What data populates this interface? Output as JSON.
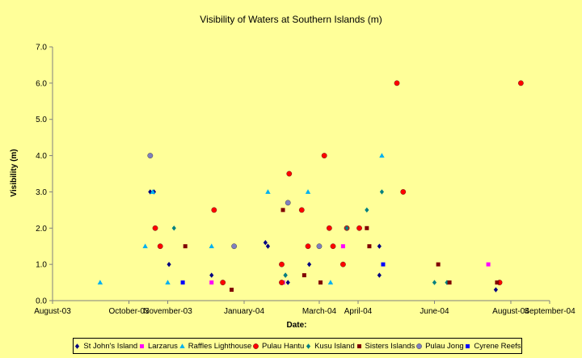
{
  "chart_data": {
    "type": "scatter",
    "title": "Visibility of Waters at Southern Islands (m)",
    "xlabel": "Date:",
    "ylabel": "Visibility (m)",
    "ylim": [
      0,
      7
    ],
    "y_ticks": [
      "0.0",
      "1.0",
      "2.0",
      "3.0",
      "4.0",
      "5.0",
      "6.0",
      "7.0"
    ],
    "xlim": [
      "2003-08-01",
      "2004-09-01"
    ],
    "x_ticks": [
      {
        "date": "2003-08-01",
        "label": "August-03"
      },
      {
        "date": "2003-10-01",
        "label": "October-03"
      },
      {
        "date": "2003-11-01",
        "label": "November-03"
      },
      {
        "date": "2004-01-01",
        "label": "January-04"
      },
      {
        "date": "2004-03-01",
        "label": "March-04"
      },
      {
        "date": "2004-04-01",
        "label": "April-04"
      },
      {
        "date": "2004-06-01",
        "label": "June-04"
      },
      {
        "date": "2004-08-01",
        "label": "August-04"
      },
      {
        "date": "2004-09-01",
        "label": "September-04"
      }
    ],
    "grid": false,
    "legend_position": "bottom",
    "series": [
      {
        "name": "St John's Island",
        "color": "#000080",
        "marker": "diamond",
        "points": [
          {
            "x": "2003-10-18",
            "y": 3.0
          },
          {
            "x": "2003-10-21",
            "y": 3.0
          },
          {
            "x": "2003-10-22",
            "y": 2.0
          },
          {
            "x": "2003-11-02",
            "y": 1.0
          },
          {
            "x": "2003-12-06",
            "y": 0.7
          },
          {
            "x": "2004-01-18",
            "y": 1.6
          },
          {
            "x": "2004-01-20",
            "y": 1.5
          },
          {
            "x": "2004-02-03",
            "y": 0.7
          },
          {
            "x": "2004-02-05",
            "y": 0.5
          },
          {
            "x": "2004-02-22",
            "y": 1.0
          },
          {
            "x": "2004-04-18",
            "y": 1.5
          },
          {
            "x": "2004-04-18",
            "y": 0.7
          },
          {
            "x": "2004-07-20",
            "y": 0.3
          }
        ]
      },
      {
        "name": "Larzarus",
        "color": "#FF00FF",
        "marker": "square",
        "points": [
          {
            "x": "2003-12-06",
            "y": 0.5
          },
          {
            "x": "2004-02-01",
            "y": 0.5
          },
          {
            "x": "2004-03-20",
            "y": 1.5
          },
          {
            "x": "2004-07-14",
            "y": 1.0
          }
        ]
      },
      {
        "name": "Raffles Lighthouse",
        "color": "#00B0F0",
        "marker": "triangle",
        "points": [
          {
            "x": "2003-09-08",
            "y": 0.5
          },
          {
            "x": "2003-10-14",
            "y": 1.5
          },
          {
            "x": "2003-10-20",
            "y": 3.0
          },
          {
            "x": "2003-11-01",
            "y": 0.5
          },
          {
            "x": "2003-12-06",
            "y": 1.5
          },
          {
            "x": "2004-01-20",
            "y": 3.0
          },
          {
            "x": "2004-02-21",
            "y": 3.0
          },
          {
            "x": "2004-03-10",
            "y": 0.5
          },
          {
            "x": "2004-04-20",
            "y": 4.0
          }
        ]
      },
      {
        "name": "Pulau Hantu",
        "color": "#FF0000",
        "marker": "circle",
        "points": [
          {
            "x": "2003-10-22",
            "y": 2.0
          },
          {
            "x": "2003-10-26",
            "y": 1.5
          },
          {
            "x": "2003-12-08",
            "y": 2.5
          },
          {
            "x": "2003-12-15",
            "y": 0.5
          },
          {
            "x": "2004-01-31",
            "y": 1.0
          },
          {
            "x": "2004-01-31",
            "y": 0.5
          },
          {
            "x": "2004-02-06",
            "y": 3.5
          },
          {
            "x": "2004-02-16",
            "y": 2.5
          },
          {
            "x": "2004-02-21",
            "y": 1.5
          },
          {
            "x": "2004-03-05",
            "y": 4.0
          },
          {
            "x": "2004-03-09",
            "y": 2.0
          },
          {
            "x": "2004-03-12",
            "y": 1.5
          },
          {
            "x": "2004-03-20",
            "y": 1.0
          },
          {
            "x": "2004-03-23",
            "y": 2.0
          },
          {
            "x": "2004-04-02",
            "y": 2.0
          },
          {
            "x": "2004-05-02",
            "y": 6.0
          },
          {
            "x": "2004-05-07",
            "y": 3.0
          },
          {
            "x": "2004-07-23",
            "y": 0.5
          },
          {
            "x": "2004-08-09",
            "y": 6.0
          }
        ]
      },
      {
        "name": "Kusu Island",
        "color": "#008080",
        "marker": "diamond",
        "points": [
          {
            "x": "2003-11-06",
            "y": 2.0
          },
          {
            "x": "2004-02-03",
            "y": 0.7
          },
          {
            "x": "2004-03-23",
            "y": 2.0
          },
          {
            "x": "2004-04-08",
            "y": 2.5
          },
          {
            "x": "2004-04-20",
            "y": 3.0
          },
          {
            "x": "2004-06-01",
            "y": 0.5
          },
          {
            "x": "2004-06-11",
            "y": 0.5
          }
        ]
      },
      {
        "name": "Sisters Islands",
        "color": "#800000",
        "marker": "square",
        "points": [
          {
            "x": "2003-11-15",
            "y": 1.5
          },
          {
            "x": "2003-12-22",
            "y": 0.3
          },
          {
            "x": "2004-02-01",
            "y": 2.5
          },
          {
            "x": "2004-02-18",
            "y": 0.7
          },
          {
            "x": "2004-03-02",
            "y": 0.5
          },
          {
            "x": "2004-04-08",
            "y": 2.0
          },
          {
            "x": "2004-04-10",
            "y": 1.5
          },
          {
            "x": "2004-06-04",
            "y": 1.0
          },
          {
            "x": "2004-06-13",
            "y": 0.5
          },
          {
            "x": "2004-07-21",
            "y": 0.5
          }
        ]
      },
      {
        "name": "Pulau Jong",
        "color": "#7F7FBF",
        "marker": "circle",
        "points": [
          {
            "x": "2003-10-18",
            "y": 4.0
          },
          {
            "x": "2003-12-24",
            "y": 1.5
          },
          {
            "x": "2004-02-05",
            "y": 2.7
          },
          {
            "x": "2004-03-01",
            "y": 1.5
          }
        ]
      },
      {
        "name": "Cyrene Reefs",
        "color": "#0000FF",
        "marker": "square",
        "points": [
          {
            "x": "2003-11-13",
            "y": 0.5
          },
          {
            "x": "2004-04-21",
            "y": 1.0
          }
        ]
      }
    ]
  }
}
